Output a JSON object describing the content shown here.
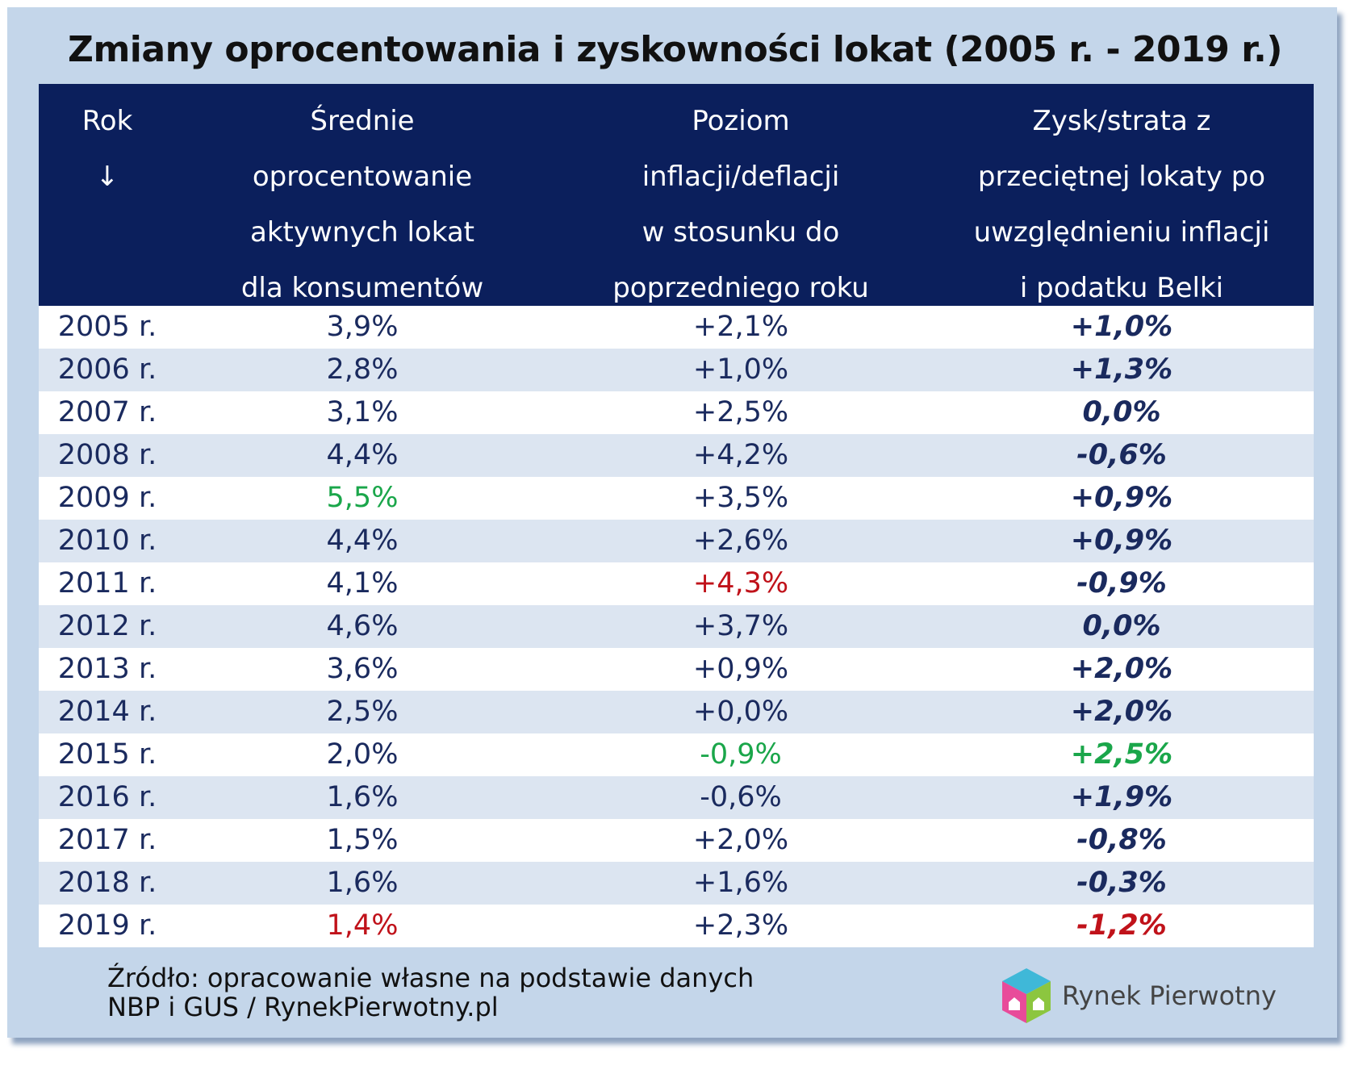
{
  "title": "Zmiany oprocentowania i zyskowności lokat (2005 r. - 2019 r.)",
  "table": {
    "columns": [
      [
        "Rok",
        "↓"
      ],
      [
        "Średnie",
        "oprocentowanie",
        "aktywnych lokat",
        "dla konsumentów"
      ],
      [
        "Poziom",
        "inflacji/deflacji",
        "w stosunku do",
        "poprzedniego roku"
      ],
      [
        "Zysk/strata z",
        "przeciętnej lokaty po",
        "uwzględnieniu inflacji",
        "i podatku Belki"
      ]
    ],
    "rows": [
      [
        "2005 r.",
        "3,9%",
        "+2,1%",
        "+1,0%"
      ],
      [
        "2006 r.",
        "2,8%",
        "+1,0%",
        "+1,3%"
      ],
      [
        "2007 r.",
        "3,1%",
        "+2,5%",
        "0,0%"
      ],
      [
        "2008 r.",
        "4,4%",
        "+4,2%",
        "-0,6%"
      ],
      [
        "2009 r.",
        "5,5%",
        "+3,5%",
        "+0,9%"
      ],
      [
        "2010 r.",
        "4,4%",
        "+2,6%",
        "+0,9%"
      ],
      [
        "2011 r.",
        "4,1%",
        "+4,3%",
        "-0,9%"
      ],
      [
        "2012 r.",
        "4,6%",
        "+3,7%",
        "0,0%"
      ],
      [
        "2013 r.",
        "3,6%",
        "+0,9%",
        "+2,0%"
      ],
      [
        "2014 r.",
        "2,5%",
        "+0,0%",
        "+2,0%"
      ],
      [
        "2015 r.",
        "2,0%",
        "-0,9%",
        "+2,5%"
      ],
      [
        "2016 r.",
        "1,6%",
        "-0,6%",
        "+1,9%"
      ],
      [
        "2017 r.",
        "1,5%",
        "+2,0%",
        "-0,8%"
      ],
      [
        "2018 r.",
        "1,6%",
        "+1,6%",
        "-0,3%"
      ],
      [
        "2019 r.",
        "1,4%",
        "+2,3%",
        "-1,2%"
      ]
    ],
    "highlights": [
      {
        "row": 4,
        "col": 1,
        "color": "#1aa64a"
      },
      {
        "row": 6,
        "col": 2,
        "color": "#c0121a"
      },
      {
        "row": 10,
        "col": 2,
        "color": "#1aa64a"
      },
      {
        "row": 10,
        "col": 3,
        "color": "#1aa64a"
      },
      {
        "row": 14,
        "col": 1,
        "color": "#c0121a"
      },
      {
        "row": 14,
        "col": 3,
        "color": "#c0121a"
      }
    ]
  },
  "source": [
    "Źródło: opracowanie własne na podstawie danych",
    "NBP i GUS / RynekPierwotny.pl"
  ],
  "logo": "Rynek Pierwotny"
}
